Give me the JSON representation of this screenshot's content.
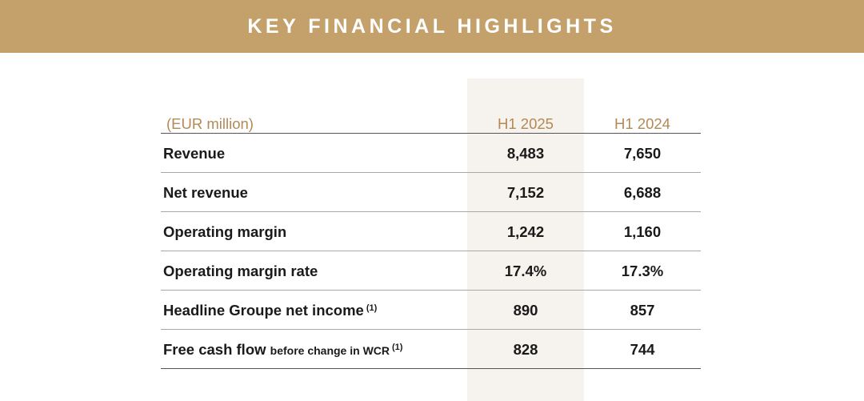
{
  "banner": {
    "title": "KEY FINANCIAL HIGHLIGHTS",
    "color": "#c4a16b"
  },
  "table": {
    "unit_label": "(EUR million)",
    "columns": [
      "H1 2025",
      "H1 2024"
    ],
    "rows": [
      {
        "label": "Revenue",
        "h1_2025": "8,483",
        "h1_2024": "7,650"
      },
      {
        "label": "Net revenue",
        "h1_2025": "7,152",
        "h1_2024": "6,688"
      },
      {
        "label": "Operating margin",
        "h1_2025": "1,242",
        "h1_2024": "1,160"
      },
      {
        "label": "Operating margin rate",
        "h1_2025": "17.4%",
        "h1_2024": "17.3%"
      },
      {
        "label": "Headline Groupe net income",
        "note": "(1)",
        "h1_2025": "890",
        "h1_2024": "857"
      },
      {
        "label": "Free cash flow",
        "label_small": "before change in WCR",
        "note": "(1)",
        "h1_2025": "828",
        "h1_2024": "744"
      }
    ]
  }
}
